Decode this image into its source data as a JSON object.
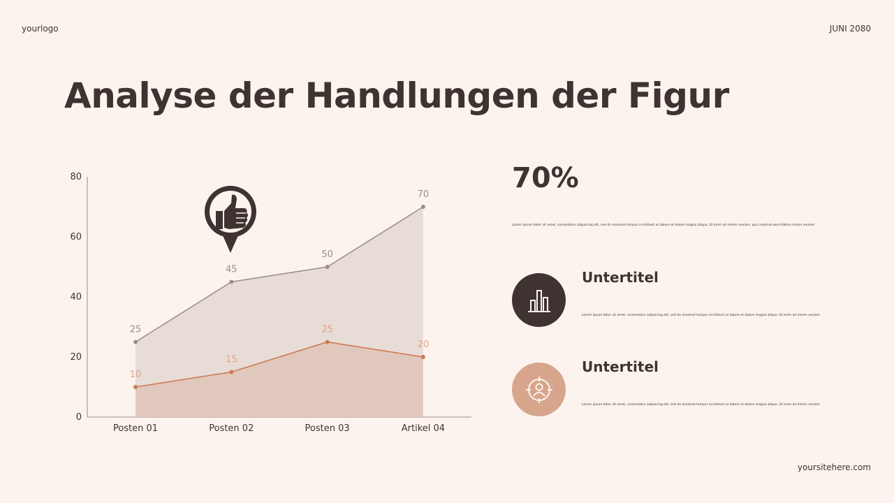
{
  "header": {
    "logo": "yourlogo",
    "date": "JUNI 2080"
  },
  "footer": {
    "site": "yoursitehere.com"
  },
  "title": "Analyse der Handlungen der Figur",
  "stats": {
    "headline": "70%",
    "headline_text": "Lorem ipsum dolor sit amet, consectetur adipiscing elit, sed do eiusmod tempor incididunt ut labore et dolore magna aliqua. Ut enim ad minim veniam, quis nostrud exercitation minim veniam",
    "items": [
      {
        "title": "Untertitel",
        "text": "Lorem ipsum dolor sit amet, consectetur adipiscing elit, sed do eiusmod tempor incididunt ut labore et dolore magna aliqua. Ut enim ad minim veniam",
        "icon": "bar-chart-icon"
      },
      {
        "title": "Untertitel",
        "text": "Lorem ipsum dolor sit amet, consectetur adipiscing elit, sed do eiusmod tempor incididunt ut labore et dolore magna aliqua. Ut enim ad minim veniam",
        "icon": "user-target-icon"
      }
    ]
  },
  "colors": {
    "background": "#fdf3ee",
    "text": "#3e3331",
    "series_top_line": "#9a8e8b",
    "series_top_fill": "#e6d9d3",
    "series_bottom_line": "#cc7a55",
    "series_bottom_fill": "#dfc2b3",
    "accent_circle": "#d6a58c"
  },
  "chart_data": {
    "type": "area",
    "categories": [
      "Posten 01",
      "Posten 02",
      "Posten 03",
      "Artikel 04"
    ],
    "series": [
      {
        "values": [
          25,
          45,
          50,
          70
        ]
      },
      {
        "values": [
          10,
          15,
          25,
          20
        ]
      }
    ],
    "ylim": [
      0,
      80
    ],
    "yticks": [
      0,
      20,
      40,
      60,
      80
    ],
    "grid": false,
    "annotation_icon": "thumbs-up-icon"
  }
}
